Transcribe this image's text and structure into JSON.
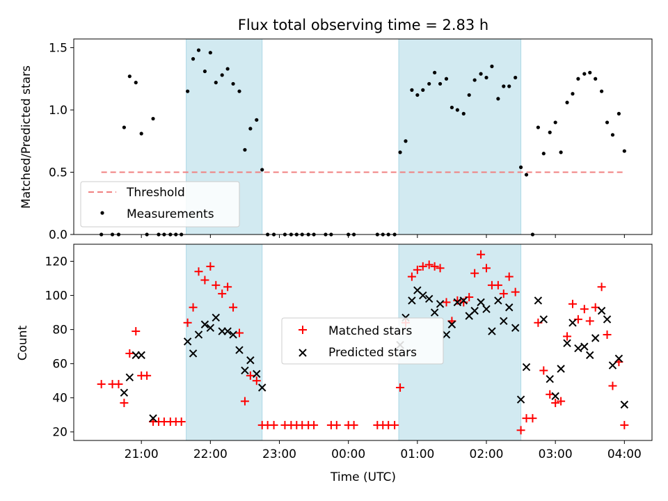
{
  "chart_data": {
    "type": "scatter",
    "title": "Flux total observing time = 2.83 h",
    "xlabel": "Time (UTC)",
    "x_tick_labels": [
      "21:00",
      "22:00",
      "23:00",
      "00:00",
      "01:00",
      "02:00",
      "03:00",
      "04:00"
    ],
    "x_tick_values": [
      21,
      22,
      23,
      24,
      25,
      26,
      27,
      28
    ],
    "xlim": [
      20.02,
      28.4
    ],
    "shaded_intervals": [
      [
        21.65,
        22.75
      ],
      [
        24.73,
        26.5
      ]
    ],
    "shade_color": "#add8e6",
    "panels": [
      {
        "ylabel": "Matched/Predicted stars",
        "ylim": [
          0,
          1.57
        ],
        "y_tick_values": [
          0.0,
          0.5,
          1.0,
          1.5
        ],
        "y_tick_labels": [
          "0.0",
          "0.5",
          "1.0",
          "1.5"
        ],
        "legend_position": "lower-left",
        "series": [
          {
            "name": "Threshold",
            "kind": "dashed-line",
            "color": "#f08080",
            "x": [
              20.42,
              28.02
            ],
            "y": [
              0.5,
              0.5
            ]
          },
          {
            "name": "Measurements",
            "kind": "dot",
            "color": "#000000",
            "points": [
              [
                20.42,
                0
              ],
              [
                20.58,
                0
              ],
              [
                20.67,
                0
              ],
              [
                20.75,
                0.86
              ],
              [
                20.83,
                1.27
              ],
              [
                20.92,
                1.22
              ],
              [
                21.0,
                0.81
              ],
              [
                21.08,
                0
              ],
              [
                21.17,
                0.93
              ],
              [
                21.25,
                0
              ],
              [
                21.33,
                0
              ],
              [
                21.42,
                0
              ],
              [
                21.5,
                0
              ],
              [
                21.58,
                0
              ],
              [
                21.67,
                1.15
              ],
              [
                21.75,
                1.41
              ],
              [
                21.83,
                1.48
              ],
              [
                21.92,
                1.31
              ],
              [
                22.0,
                1.46
              ],
              [
                22.08,
                1.22
              ],
              [
                22.17,
                1.28
              ],
              [
                22.25,
                1.33
              ],
              [
                22.33,
                1.21
              ],
              [
                22.42,
                1.15
              ],
              [
                22.5,
                0.68
              ],
              [
                22.58,
                0.85
              ],
              [
                22.67,
                0.92
              ],
              [
                22.75,
                0.52
              ],
              [
                22.83,
                0
              ],
              [
                22.92,
                0
              ],
              [
                23.08,
                0
              ],
              [
                23.17,
                0
              ],
              [
                23.25,
                0
              ],
              [
                23.33,
                0
              ],
              [
                23.42,
                0
              ],
              [
                23.5,
                0
              ],
              [
                23.67,
                0
              ],
              [
                23.75,
                0
              ],
              [
                24.0,
                0
              ],
              [
                24.08,
                0
              ],
              [
                24.42,
                0
              ],
              [
                24.5,
                0
              ],
              [
                24.58,
                0
              ],
              [
                24.67,
                0
              ],
              [
                24.75,
                0.66
              ],
              [
                24.83,
                0.75
              ],
              [
                24.92,
                1.16
              ],
              [
                25.0,
                1.12
              ],
              [
                25.08,
                1.16
              ],
              [
                25.17,
                1.21
              ],
              [
                25.25,
                1.3
              ],
              [
                25.33,
                1.21
              ],
              [
                25.42,
                1.25
              ],
              [
                25.5,
                1.02
              ],
              [
                25.58,
                1.0
              ],
              [
                25.67,
                0.97
              ],
              [
                25.75,
                1.12
              ],
              [
                25.83,
                1.24
              ],
              [
                25.92,
                1.29
              ],
              [
                26.0,
                1.26
              ],
              [
                26.08,
                1.35
              ],
              [
                26.17,
                1.09
              ],
              [
                26.25,
                1.19
              ],
              [
                26.33,
                1.19
              ],
              [
                26.42,
                1.26
              ],
              [
                26.5,
                0.54
              ],
              [
                26.58,
                0.48
              ],
              [
                26.67,
                0
              ],
              [
                26.75,
                0.86
              ],
              [
                26.83,
                0.65
              ],
              [
                26.92,
                0.82
              ],
              [
                27.0,
                0.9
              ],
              [
                27.08,
                0.66
              ],
              [
                27.17,
                1.06
              ],
              [
                27.25,
                1.13
              ],
              [
                27.33,
                1.25
              ],
              [
                27.42,
                1.29
              ],
              [
                27.5,
                1.3
              ],
              [
                27.58,
                1.25
              ],
              [
                27.67,
                1.15
              ],
              [
                27.75,
                0.9
              ],
              [
                27.83,
                0.8
              ],
              [
                27.92,
                0.97
              ],
              [
                28.0,
                0.67
              ]
            ]
          }
        ]
      },
      {
        "ylabel": "Count",
        "ylim": [
          15,
          130
        ],
        "y_tick_values": [
          20,
          40,
          60,
          80,
          100,
          120
        ],
        "y_tick_labels": [
          "20",
          "40",
          "60",
          "80",
          "100",
          "120"
        ],
        "legend_position": "center",
        "series": [
          {
            "name": "Matched stars",
            "kind": "plus",
            "color": "#ff0000",
            "points": [
              [
                20.42,
                48
              ],
              [
                20.58,
                48
              ],
              [
                20.67,
                48
              ],
              [
                20.75,
                37
              ],
              [
                20.83,
                66
              ],
              [
                20.92,
                79
              ],
              [
                21.0,
                53
              ],
              [
                21.08,
                53
              ],
              [
                21.17,
                26
              ],
              [
                21.25,
                26
              ],
              [
                21.33,
                26
              ],
              [
                21.42,
                26
              ],
              [
                21.5,
                26
              ],
              [
                21.58,
                26
              ],
              [
                21.67,
                84
              ],
              [
                21.75,
                93
              ],
              [
                21.83,
                114
              ],
              [
                21.92,
                109
              ],
              [
                22.0,
                117
              ],
              [
                22.08,
                106
              ],
              [
                22.17,
                101
              ],
              [
                22.25,
                105
              ],
              [
                22.33,
                93
              ],
              [
                22.42,
                78
              ],
              [
                22.5,
                38
              ],
              [
                22.58,
                53
              ],
              [
                22.67,
                50
              ],
              [
                22.75,
                24
              ],
              [
                22.83,
                24
              ],
              [
                22.92,
                24
              ],
              [
                23.08,
                24
              ],
              [
                23.17,
                24
              ],
              [
                23.25,
                24
              ],
              [
                23.33,
                24
              ],
              [
                23.42,
                24
              ],
              [
                23.5,
                24
              ],
              [
                23.75,
                24
              ],
              [
                23.83,
                24
              ],
              [
                24.0,
                24
              ],
              [
                24.08,
                24
              ],
              [
                24.42,
                24
              ],
              [
                24.5,
                24
              ],
              [
                24.58,
                24
              ],
              [
                24.67,
                24
              ],
              [
                24.75,
                46
              ],
              [
                24.83,
                84
              ],
              [
                24.92,
                111
              ],
              [
                25.0,
                115
              ],
              [
                25.08,
                117
              ],
              [
                25.17,
                118
              ],
              [
                25.25,
                117
              ],
              [
                25.33,
                116
              ],
              [
                25.42,
                96
              ],
              [
                25.5,
                85
              ],
              [
                25.58,
                97
              ],
              [
                25.67,
                96
              ],
              [
                25.75,
                99
              ],
              [
                25.83,
                113
              ],
              [
                25.92,
                124
              ],
              [
                26.0,
                116
              ],
              [
                26.08,
                106
              ],
              [
                26.17,
                106
              ],
              [
                26.25,
                101
              ],
              [
                26.33,
                111
              ],
              [
                26.42,
                102
              ],
              [
                26.5,
                21
              ],
              [
                26.58,
                28
              ],
              [
                26.67,
                28
              ],
              [
                26.75,
                84
              ],
              [
                26.83,
                56
              ],
              [
                26.92,
                42
              ],
              [
                27.0,
                37
              ],
              [
                27.08,
                38
              ],
              [
                27.17,
                76
              ],
              [
                27.25,
                95
              ],
              [
                27.33,
                86
              ],
              [
                27.42,
                92
              ],
              [
                27.5,
                85
              ],
              [
                27.58,
                93
              ],
              [
                27.67,
                105
              ],
              [
                27.75,
                77
              ],
              [
                27.83,
                47
              ],
              [
                27.92,
                61
              ],
              [
                28.0,
                24
              ]
            ]
          },
          {
            "name": "Predicted stars",
            "kind": "cross",
            "color": "#000000",
            "points": [
              [
                20.75,
                43
              ],
              [
                20.83,
                52
              ],
              [
                20.92,
                65
              ],
              [
                21.0,
                65
              ],
              [
                21.17,
                28
              ],
              [
                21.67,
                73
              ],
              [
                21.75,
                66
              ],
              [
                21.83,
                77
              ],
              [
                21.92,
                83
              ],
              [
                22.0,
                81
              ],
              [
                22.08,
                87
              ],
              [
                22.17,
                79
              ],
              [
                22.25,
                79
              ],
              [
                22.33,
                77
              ],
              [
                22.42,
                68
              ],
              [
                22.5,
                56
              ],
              [
                22.58,
                62
              ],
              [
                22.67,
                54
              ],
              [
                22.75,
                46
              ],
              [
                24.75,
                71
              ],
              [
                24.83,
                87
              ],
              [
                24.92,
                97
              ],
              [
                25.0,
                103
              ],
              [
                25.08,
                100
              ],
              [
                25.17,
                98
              ],
              [
                25.25,
                90
              ],
              [
                25.33,
                95
              ],
              [
                25.42,
                77
              ],
              [
                25.5,
                83
              ],
              [
                25.58,
                96
              ],
              [
                25.67,
                97
              ],
              [
                25.75,
                88
              ],
              [
                25.83,
                91
              ],
              [
                25.92,
                96
              ],
              [
                26.0,
                92
              ],
              [
                26.08,
                79
              ],
              [
                26.17,
                97
              ],
              [
                26.25,
                85
              ],
              [
                26.33,
                93
              ],
              [
                26.42,
                81
              ],
              [
                26.5,
                39
              ],
              [
                26.58,
                58
              ],
              [
                26.75,
                97
              ],
              [
                26.83,
                86
              ],
              [
                26.92,
                51
              ],
              [
                27.0,
                41
              ],
              [
                27.08,
                57
              ],
              [
                27.17,
                72
              ],
              [
                27.25,
                84
              ],
              [
                27.33,
                69
              ],
              [
                27.42,
                70
              ],
              [
                27.5,
                65
              ],
              [
                27.58,
                75
              ],
              [
                27.67,
                91
              ],
              [
                27.75,
                86
              ],
              [
                27.83,
                59
              ],
              [
                27.92,
                63
              ],
              [
                28.0,
                36
              ]
            ]
          }
        ]
      }
    ]
  }
}
